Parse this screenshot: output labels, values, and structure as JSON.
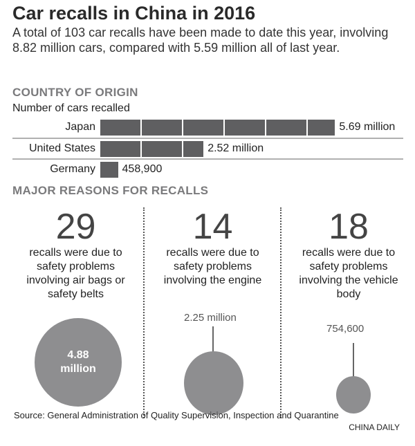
{
  "title": "Car recalls in China in 2016",
  "subtitle": "A total of 103 car recalls have been made to date this year, involving 8.82 million cars, compared with 5.59 million all of last year.",
  "chart_data": [
    {
      "type": "bar",
      "title": "COUNTRY OF ORIGIN",
      "ylabel": "Number of cars recalled",
      "categories": [
        "Japan",
        "United States",
        "Germany"
      ],
      "values": [
        5690000,
        2520000,
        458900
      ],
      "labels": [
        "5.69 million",
        "2.52 million",
        "458,900"
      ],
      "color": "#5f5f61"
    },
    {
      "type": "bubble",
      "title": "MAJOR REASONS FOR RECALLS",
      "items": [
        {
          "recalls": "29",
          "text": "recalls were due to safety problems involving air bags or safety belts",
          "cars": 4880000,
          "label_line1": "4.88",
          "label_line2": "million"
        },
        {
          "recalls": "14",
          "text": "recalls were due to safety problems involving the engine",
          "cars": 2250000,
          "label": "2.25 million"
        },
        {
          "recalls": "18",
          "text": "recalls were due to safety problems involving the vehicle body",
          "cars": 754600,
          "label": "754,600"
        }
      ],
      "color": "#8e8e90"
    }
  ],
  "source": "Source: General Administration of Quality Supervision, Inspection and Quarantine",
  "brand": "CHINA DAILY"
}
